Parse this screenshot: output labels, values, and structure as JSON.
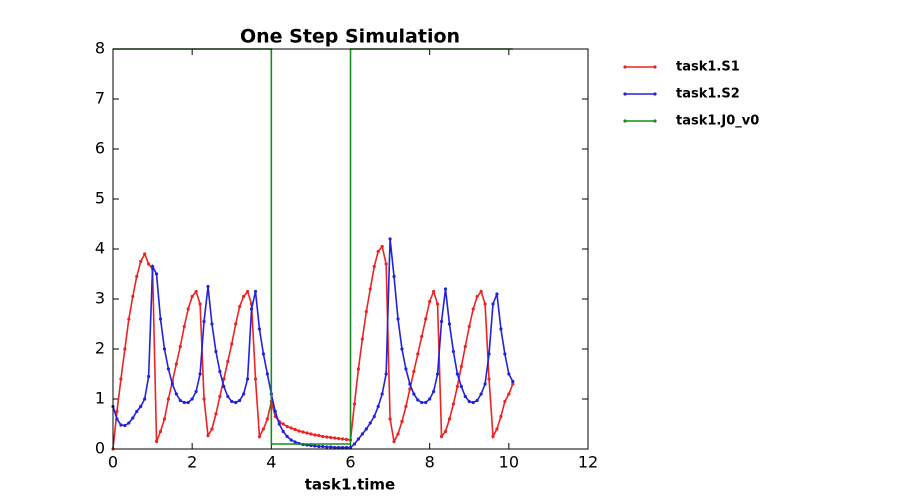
{
  "chart_data": {
    "type": "line",
    "title": "One Step Simulation",
    "x_label": "task1.time",
    "x": [
      0,
      0.1,
      0.2,
      0.3,
      0.4,
      0.5,
      0.6,
      0.7,
      0.8,
      0.9,
      1.0,
      1.1,
      1.2,
      1.3,
      1.4,
      1.5,
      1.6,
      1.7,
      1.8,
      1.9,
      2.0,
      2.1,
      2.2,
      2.3,
      2.4,
      2.5,
      2.6,
      2.7,
      2.8,
      2.9,
      3.0,
      3.1,
      3.2,
      3.3,
      3.4,
      3.5,
      3.6,
      3.7,
      3.8,
      3.9,
      4.0,
      4.1,
      4.2,
      4.3,
      4.4,
      4.5,
      4.6,
      4.7,
      4.8,
      4.9,
      5.0,
      5.1,
      5.2,
      5.3,
      5.4,
      5.5,
      5.6,
      5.7,
      5.8,
      5.9,
      6.0,
      6.1,
      6.2,
      6.3,
      6.4,
      6.5,
      6.6,
      6.7,
      6.8,
      6.9,
      7.0,
      7.1,
      7.2,
      7.3,
      7.4,
      7.5,
      7.6,
      7.7,
      7.8,
      7.9,
      8.0,
      8.1,
      8.2,
      8.3,
      8.4,
      8.5,
      8.6,
      8.7,
      8.8,
      8.9,
      9.0,
      9.1,
      9.2,
      9.3,
      9.4,
      9.5,
      9.6,
      9.7,
      9.8,
      9.9,
      10.0,
      10.1
    ],
    "series": [
      {
        "name": "task1.S1",
        "color": "#ee2222",
        "values": [
          0,
          0.75,
          1.4,
          2.0,
          2.6,
          3.05,
          3.45,
          3.75,
          3.9,
          3.7,
          3.6,
          0.15,
          0.35,
          0.6,
          1.0,
          1.35,
          1.7,
          2.05,
          2.45,
          2.8,
          3.05,
          3.15,
          2.9,
          1.0,
          0.27,
          0.4,
          0.7,
          1.05,
          1.4,
          1.75,
          2.1,
          2.5,
          2.85,
          3.05,
          3.15,
          2.9,
          1.4,
          0.25,
          0.4,
          0.6,
          0.95,
          0.65,
          0.55,
          0.5,
          0.45,
          0.42,
          0.39,
          0.36,
          0.34,
          0.32,
          0.3,
          0.28,
          0.27,
          0.25,
          0.24,
          0.23,
          0.22,
          0.21,
          0.2,
          0.19,
          0.18,
          0.9,
          1.6,
          2.2,
          2.75,
          3.2,
          3.65,
          3.95,
          4.05,
          3.7,
          0.6,
          0.15,
          0.3,
          0.55,
          0.85,
          1.2,
          1.55,
          1.9,
          2.25,
          2.6,
          2.95,
          3.15,
          2.9,
          0.25,
          0.35,
          0.6,
          0.9,
          1.25,
          1.65,
          2.05,
          2.45,
          2.8,
          3.05,
          3.15,
          2.9,
          1.4,
          0.25,
          0.4,
          0.65,
          0.95,
          1.1,
          1.3
        ]
      },
      {
        "name": "task1.S2",
        "color": "#2222dd",
        "values": [
          0.85,
          0.6,
          0.48,
          0.47,
          0.52,
          0.62,
          0.75,
          0.85,
          1.0,
          1.45,
          3.65,
          3.5,
          2.6,
          2.0,
          1.6,
          1.3,
          1.1,
          0.97,
          0.93,
          0.93,
          1.0,
          1.15,
          1.5,
          2.55,
          3.25,
          2.5,
          1.95,
          1.55,
          1.25,
          1.05,
          0.95,
          0.93,
          0.97,
          1.1,
          1.4,
          2.8,
          3.15,
          2.4,
          1.9,
          1.5,
          1.1,
          0.75,
          0.5,
          0.35,
          0.25,
          0.18,
          0.14,
          0.11,
          0.09,
          0.08,
          0.07,
          0.06,
          0.05,
          0.05,
          0.04,
          0.04,
          0.03,
          0.03,
          0.03,
          0.03,
          0.03,
          0.1,
          0.2,
          0.3,
          0.4,
          0.52,
          0.65,
          0.85,
          1.1,
          1.5,
          4.2,
          3.45,
          2.6,
          2.0,
          1.6,
          1.3,
          1.1,
          0.98,
          0.93,
          0.93,
          1.0,
          1.15,
          1.5,
          2.55,
          3.2,
          2.5,
          1.95,
          1.5,
          1.25,
          1.05,
          0.95,
          0.93,
          0.97,
          1.1,
          1.3,
          1.9,
          2.9,
          3.1,
          2.4,
          1.9,
          1.5,
          1.35
        ]
      },
      {
        "name": "task1.J0_v0",
        "color": "#1a8a1a",
        "x": [
          0,
          4,
          4,
          6,
          6,
          10.1
        ],
        "values": [
          8,
          8,
          0.1,
          0.1,
          8,
          8
        ]
      }
    ],
    "xlim": [
      0,
      12
    ],
    "xticks": [
      0,
      2,
      4,
      6,
      8,
      10,
      12
    ],
    "ylim": [
      0,
      8
    ],
    "yticks": [
      0,
      1,
      2,
      3,
      4,
      5,
      6,
      7,
      8
    ],
    "grid": false,
    "legend": "right"
  }
}
